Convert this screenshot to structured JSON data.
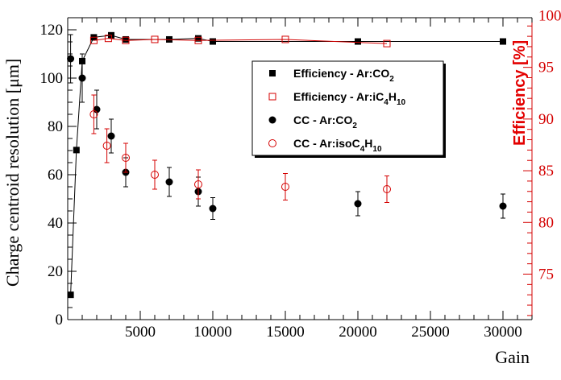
{
  "chart_data": {
    "type": "scatter",
    "xlabel": "Gain",
    "ylabel_left": "Charge centroid resolution [μm]",
    "ylabel_right": "Efficiency [%]",
    "xlim": [
      0,
      32000
    ],
    "ylim_left": [
      0,
      125
    ],
    "ylim_right": [
      70.6,
      99.8
    ],
    "x_ticks": [
      5000,
      10000,
      15000,
      20000,
      25000,
      30000
    ],
    "y_left_ticks": [
      0,
      20,
      40,
      60,
      80,
      100,
      120
    ],
    "y_right_ticks": [
      75,
      80,
      85,
      90,
      95,
      100
    ],
    "x_tick_labels": [
      "5000",
      "10000",
      "15000",
      "20000",
      "25000",
      "30000"
    ],
    "y_left_tick_labels": [
      "0",
      "20",
      "40",
      "60",
      "80",
      "100",
      "120"
    ],
    "y_right_tick_labels": [
      "75",
      "80",
      "85",
      "90",
      "95",
      "100"
    ],
    "series": [
      {
        "name": "Efficiency - Ar:CO2",
        "axis": "right",
        "marker": "filled-square",
        "color": "#000000",
        "connected": true,
        "x": [
          200,
          600,
          1000,
          1800,
          3000,
          4000,
          7000,
          9000,
          10000,
          20000,
          30000
        ],
        "y": [
          73.0,
          87.0,
          95.6,
          97.9,
          98.1,
          97.7,
          97.7,
          97.8,
          97.5,
          97.5,
          97.5
        ]
      },
      {
        "name": "Efficiency - Ar:iC4H10",
        "axis": "right",
        "marker": "open-square",
        "color": "#d40000",
        "connected": true,
        "x": [
          1800,
          2800,
          4000,
          6000,
          9000,
          15000,
          22000
        ],
        "y": [
          97.6,
          97.8,
          97.6,
          97.7,
          97.6,
          97.7,
          97.3
        ]
      },
      {
        "name": "CC - Ar:CO2",
        "axis": "left",
        "marker": "filled-circle",
        "color": "#000000",
        "connected": false,
        "x": [
          200,
          1000,
          2000,
          3000,
          4000,
          7000,
          9000,
          10000,
          20000,
          30000
        ],
        "y": [
          108,
          100,
          87,
          76,
          61,
          57,
          53,
          46,
          48,
          47
        ],
        "err": [
          10,
          10,
          8,
          7,
          6,
          6,
          6,
          4.5,
          5,
          5
        ]
      },
      {
        "name": "CC - Ar:isoC4H10",
        "axis": "left",
        "marker": "open-circle",
        "color": "#d40000",
        "connected": false,
        "x": [
          1800,
          2700,
          4000,
          6000,
          9000,
          15000,
          22000
        ],
        "y": [
          85,
          72,
          67,
          60,
          56,
          55,
          54
        ],
        "err": [
          8,
          7,
          6,
          6,
          6,
          5.5,
          5.5
        ]
      }
    ],
    "legend": {
      "position": "upper-right",
      "entries": [
        {
          "marker": "filled-square",
          "color": "#000000",
          "base": "Efficiency - Ar:CO",
          "sub": "2",
          "rest": "",
          "sub2": ""
        },
        {
          "marker": "open-square",
          "color": "#d40000",
          "base": "Efficiency - Ar:iC",
          "sub": "4",
          "rest": "H",
          "sub2": "10"
        },
        {
          "marker": "filled-circle",
          "color": "#000000",
          "base": "CC - Ar:CO",
          "sub": "2",
          "rest": "",
          "sub2": ""
        },
        {
          "marker": "open-circle",
          "color": "#d40000",
          "base": "CC - Ar:isoC",
          "sub": "4",
          "rest": "H",
          "sub2": "10"
        }
      ]
    }
  }
}
